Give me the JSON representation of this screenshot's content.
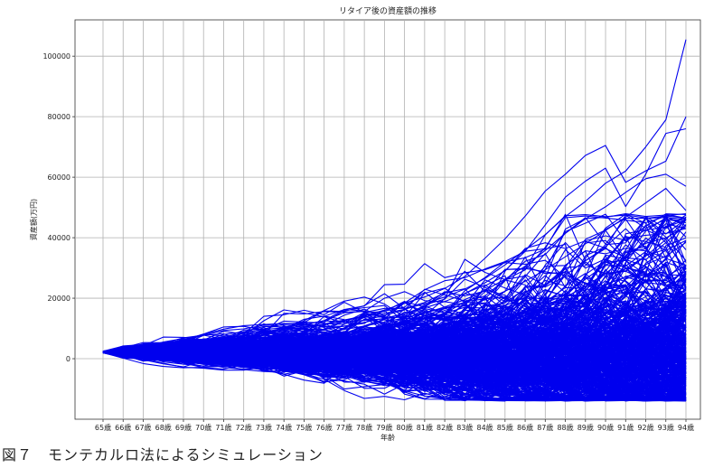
{
  "caption": "図７　モンテカルロ法によるシミュレーション",
  "chart_data": {
    "type": "line",
    "title": "リタイア後の資産額の推移",
    "xlabel": "年齢",
    "ylabel": "資産額(万円)",
    "categories": [
      "65歳",
      "66歳",
      "67歳",
      "68歳",
      "69歳",
      "70歳",
      "71歳",
      "72歳",
      "73歳",
      "74歳",
      "75歳",
      "76歳",
      "77歳",
      "78歳",
      "79歳",
      "80歳",
      "81歳",
      "82歳",
      "83歳",
      "84歳",
      "85歳",
      "86歳",
      "87歳",
      "88歳",
      "89歳",
      "90歳",
      "91歳",
      "92歳",
      "93歳",
      "94歳"
    ],
    "ylim": [
      -20000,
      112000
    ],
    "yticks": [
      0,
      20000,
      40000,
      60000,
      80000,
      100000
    ],
    "grid": true,
    "line_color": "#0000ee",
    "series_highlight": [
      {
        "values": [
          2500,
          2700,
          3300,
          4600,
          5400,
          5800,
          6500,
          7100,
          8400,
          9400,
          10500,
          11300,
          12600,
          13900,
          15000,
          16300,
          18200,
          20400,
          23000,
          26500,
          31000,
          36000,
          41000,
          47000,
          52000,
          58000,
          62000,
          70000,
          79000,
          105500
        ]
      },
      {
        "values": [
          2400,
          2600,
          3100,
          4200,
          4900,
          5600,
          6100,
          6900,
          7900,
          8900,
          9900,
          11500,
          12800,
          14200,
          16100,
          18400,
          20400,
          23200,
          27200,
          33200,
          39600,
          47100,
          55400,
          61000,
          67200,
          70500,
          58300,
          62100,
          65300,
          80000
        ]
      },
      {
        "values": [
          2300,
          2500,
          3000,
          3900,
          4500,
          4900,
          5500,
          6100,
          7000,
          7900,
          8700,
          9700,
          10800,
          12000,
          13400,
          14900,
          16800,
          18900,
          21500,
          25100,
          29100,
          35500,
          44200,
          53400,
          58700,
          63000,
          50300,
          61000,
          74500,
          76000
        ]
      },
      {
        "values": [
          2200,
          2400,
          2800,
          3500,
          4100,
          4500,
          5000,
          5600,
          6300,
          7000,
          7900,
          8800,
          9700,
          10800,
          12100,
          13500,
          15100,
          17100,
          19500,
          22600,
          26300,
          30600,
          35800,
          41500,
          46200,
          50200,
          55000,
          59500,
          61000,
          57000
        ]
      },
      {
        "values": [
          2100,
          2300,
          2700,
          3400,
          3900,
          4200,
          4600,
          5100,
          5700,
          6300,
          7000,
          7800,
          8700,
          9700,
          10800,
          12000,
          13400,
          15000,
          17000,
          19500,
          22300,
          25600,
          29400,
          33700,
          38000,
          42400,
          46800,
          51500,
          56300,
          49000
        ]
      },
      {
        "values": [
          2000,
          2200,
          2400,
          2800,
          3000,
          3200,
          3400,
          3600,
          3900,
          4200,
          4500,
          4900,
          5300,
          5800,
          6300,
          6900,
          7600,
          8500,
          9500,
          10800,
          12400,
          14500,
          17200,
          20300,
          24000,
          28200,
          33100,
          38600,
          44600,
          43000
        ]
      },
      {
        "values": [
          2000,
          2100,
          2200,
          2300,
          2200,
          2000,
          1700,
          1400,
          1000,
          600,
          100,
          -400,
          -900,
          -1500,
          -2100,
          -2700,
          -3300,
          -3900,
          -4500,
          -5200,
          -5900,
          -6600,
          -7300,
          -8000,
          -8700,
          -9500,
          -10300,
          -11100,
          -12000,
          -13000
        ]
      },
      {
        "values": [
          2100,
          2000,
          1900,
          1800,
          1700,
          1500,
          1300,
          1000,
          700,
          400,
          0,
          -400,
          -800,
          -1200,
          -1700,
          -2200,
          -2700,
          -3300,
          -3900,
          -4500,
          -5100,
          -5800,
          -6500,
          -7200,
          -7900,
          -8600,
          -9300,
          -10000,
          -11000,
          -12000
        ]
      }
    ]
  }
}
